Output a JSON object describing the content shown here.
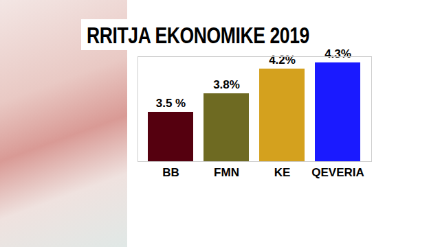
{
  "chart_data": {
    "type": "bar",
    "title": "RRITJA EKONOMIKE 2019",
    "categories": [
      "BB",
      "FMN",
      "KE",
      "QEVERIA"
    ],
    "values": [
      3.5,
      3.8,
      4.2,
      4.3
    ],
    "value_labels": [
      "3.5 %",
      "3.8%",
      "4.2%",
      "4.3%"
    ],
    "colors": [
      "#55000f",
      "#6e6a22",
      "#d4a11e",
      "#1a1aff"
    ],
    "ylim": [
      2.7,
      4.4
    ],
    "yticks": [],
    "data_labels": true,
    "tick_labels": "x",
    "grid": false
  }
}
